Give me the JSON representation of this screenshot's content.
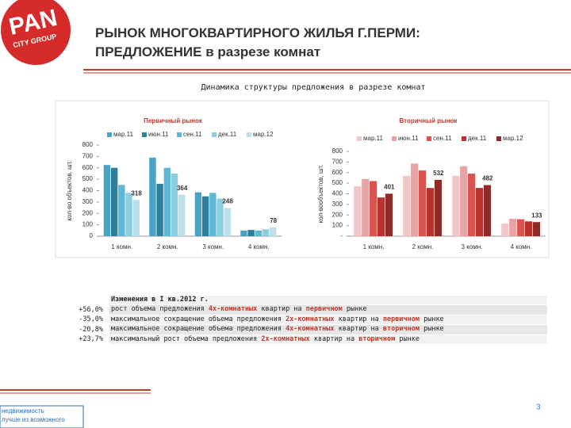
{
  "header": {
    "title_line1": "РЫНОК МНОГОКВАРТИРНОГО ЖИЛЬЯ Г.ПЕРМИ:",
    "title_line2": "ПРЕДЛОЖЕНИЕ в разрезе комнат"
  },
  "logo": {
    "big": "PAN",
    "small": "CITY GROUP"
  },
  "panel_title": "Динамика структуры предложения в разрезе комнат",
  "chart_data": [
    {
      "type": "bar",
      "title": "Первичный рынок",
      "y_label": "кол-во объектов, шт.",
      "categories": [
        "1 комн.",
        "2 комн.",
        "3 комн.",
        "4 комн."
      ],
      "ylim": [
        0,
        800
      ],
      "yticks": [
        0,
        100,
        200,
        300,
        400,
        500,
        600,
        700,
        800
      ],
      "grid": false,
      "series": [
        {
          "name": "мар.11",
          "color": "#4aa3c2",
          "values": [
            625,
            690,
            385,
            50
          ]
        },
        {
          "name": "июн.11",
          "color": "#2e7f99",
          "values": [
            600,
            460,
            350,
            55
          ]
        },
        {
          "name": "сен.11",
          "color": "#5cb8d4",
          "values": [
            450,
            600,
            380,
            50
          ]
        },
        {
          "name": "дек.11",
          "color": "#8ccde0",
          "values": [
            380,
            550,
            330,
            60
          ]
        },
        {
          "name": "мар.12",
          "color": "#bcdfe9",
          "values": [
            318,
            364,
            248,
            78
          ],
          "labels": true
        }
      ]
    },
    {
      "type": "bar",
      "title": "Вторичный рынок",
      "y_label": "кол-вообъектов, шт.",
      "categories": [
        "1 комн.",
        "2 комн.",
        "3 комн.",
        "4 комн."
      ],
      "ylim": [
        0,
        800
      ],
      "yticks": [
        {
          "value": 0,
          "label": "-"
        },
        100,
        200,
        300,
        400,
        500,
        600,
        700,
        800
      ],
      "grid": false,
      "series": [
        {
          "name": "мар.11",
          "color": "#f2c6c6",
          "values": [
            470,
            570,
            570,
            120
          ]
        },
        {
          "name": "июн.11",
          "color": "#e8a4a4",
          "values": [
            540,
            685,
            660,
            165
          ]
        },
        {
          "name": "сен.11",
          "color": "#d9534f",
          "values": [
            520,
            620,
            590,
            160
          ]
        },
        {
          "name": "дек.11",
          "color": "#b8322e",
          "values": [
            365,
            455,
            455,
            140
          ]
        },
        {
          "name": "мар.12",
          "color": "#8e2a27",
          "values": [
            401,
            532,
            482,
            133
          ],
          "labels": true
        }
      ]
    }
  ],
  "table": {
    "title": "Изменения в I кв.2012 г.",
    "rows": [
      {
        "value": "+56,0%",
        "parts": [
          "рост объема предложения ",
          "4х-комнатных",
          " квартир на ",
          "первичном",
          " рынке"
        ]
      },
      {
        "value": "-35,0%",
        "parts": [
          "максимальное сокращение объема предложения ",
          "2х-комнатных",
          " квартир на ",
          "первичном",
          " рынке"
        ]
      },
      {
        "value": "-20,8%",
        "parts": [
          "максимальное сокращение объема предложения ",
          "4х-комнатных",
          " квартир на ",
          "вторичном",
          " рынке"
        ]
      },
      {
        "value": "+23,7%",
        "parts": [
          "максимальный рост объема предложения ",
          "2х-комнатных",
          " квартир на ",
          "вторичном",
          " рынке"
        ]
      }
    ]
  },
  "footer": {
    "line1": "недвижимость",
    "line2": "лучше из возможного",
    "page": "3"
  }
}
